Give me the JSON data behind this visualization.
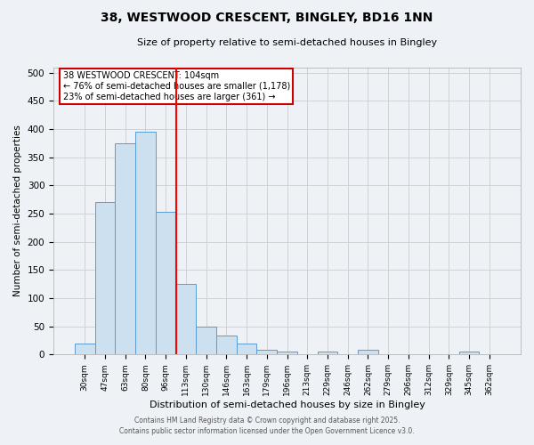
{
  "title": "38, WESTWOOD CRESCENT, BINGLEY, BD16 1NN",
  "subtitle": "Size of property relative to semi-detached houses in Bingley",
  "xlabel": "Distribution of semi-detached houses by size in Bingley",
  "ylabel": "Number of semi-detached properties",
  "bar_labels": [
    "30sqm",
    "47sqm",
    "63sqm",
    "80sqm",
    "96sqm",
    "113sqm",
    "130sqm",
    "146sqm",
    "163sqm",
    "179sqm",
    "196sqm",
    "213sqm",
    "229sqm",
    "246sqm",
    "262sqm",
    "279sqm",
    "296sqm",
    "312sqm",
    "329sqm",
    "345sqm",
    "362sqm"
  ],
  "bar_heights": [
    20,
    270,
    375,
    395,
    253,
    125,
    49,
    33,
    20,
    8,
    6,
    0,
    5,
    0,
    8,
    0,
    0,
    0,
    0,
    5,
    0
  ],
  "bar_color": "#cce0f0",
  "bar_edge_color": "#5b9bd5",
  "red_line_x": 4.53,
  "annotation_text": "38 WESTWOOD CRESCENT: 104sqm\n← 76% of semi-detached houses are smaller (1,178)\n23% of semi-detached houses are larger (361) →",
  "annotation_box_color": "#ffffff",
  "annotation_border_color": "#cc0000",
  "ylim": [
    0,
    510
  ],
  "yticks": [
    0,
    50,
    100,
    150,
    200,
    250,
    300,
    350,
    400,
    450,
    500
  ],
  "grid_color": "#cccccc",
  "bg_color": "#eef2f7",
  "footer1": "Contains HM Land Registry data © Crown copyright and database right 2025.",
  "footer2": "Contains public sector information licensed under the Open Government Licence v3.0."
}
